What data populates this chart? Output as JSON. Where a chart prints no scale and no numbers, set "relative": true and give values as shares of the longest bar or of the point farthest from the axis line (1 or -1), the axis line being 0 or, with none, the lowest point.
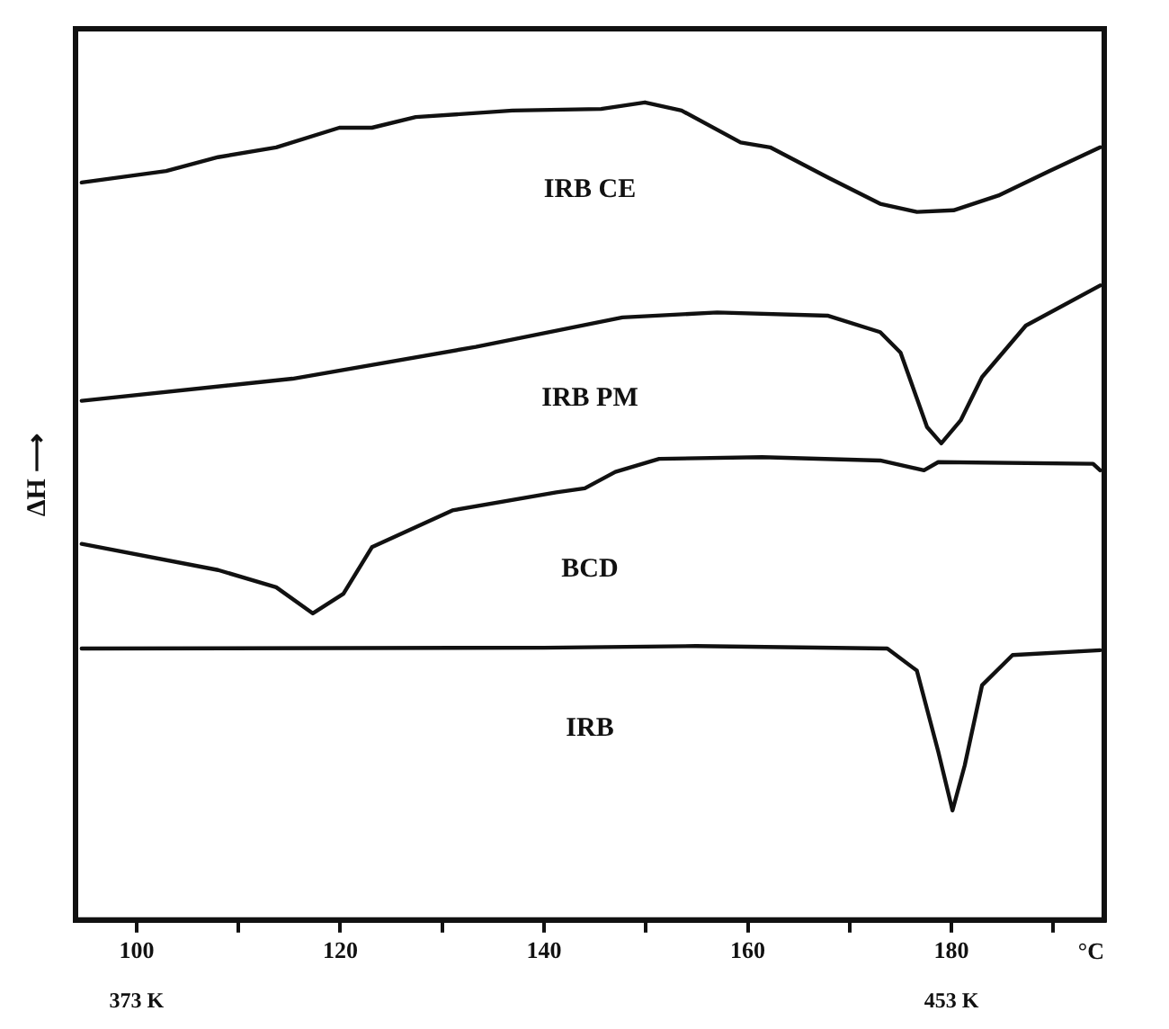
{
  "chart_data": {
    "type": "line",
    "relative": true,
    "xlabel": "°C",
    "ylabel": "ΔH ⟶",
    "legend": false,
    "grid": false,
    "marker": "none",
    "line_style": "solid",
    "xlim": [
      94,
      195
    ],
    "xticks": [
      {
        "value": 100,
        "label": "100"
      },
      {
        "value": 110,
        "label": null
      },
      {
        "value": 120,
        "label": "120"
      },
      {
        "value": 130,
        "label": null
      },
      {
        "value": 140,
        "label": "140"
      },
      {
        "value": 150,
        "label": null
      },
      {
        "value": 160,
        "label": "160"
      },
      {
        "value": 170,
        "label": null
      },
      {
        "value": 180,
        "label": "180"
      },
      {
        "value": 190,
        "label": null
      }
    ],
    "x2lim": [
      367,
      468
    ],
    "x2ticks": [
      {
        "value": 373,
        "label": "373 K"
      },
      {
        "value": 453,
        "label": "453 K"
      }
    ],
    "series": [
      {
        "name": "IRB CE",
        "color": "#111111",
        "x": [
          94.6,
          102.9,
          108.0,
          113.7,
          119.9,
          123.1,
          127.4,
          136.9,
          145.6,
          149.9,
          153.5,
          159.3,
          162.2,
          167.9,
          173.0,
          176.6,
          180.2,
          184.6,
          189.6,
          194.6
        ],
        "values": [
          0.902,
          0.916,
          0.933,
          0.945,
          0.969,
          0.969,
          0.982,
          0.99,
          0.992,
          1.0,
          0.99,
          0.951,
          0.945,
          0.908,
          0.876,
          0.866,
          0.868,
          0.886,
          0.916,
          0.945
        ]
      },
      {
        "name": "IRB PM",
        "color": "#111111",
        "x": [
          94.6,
          115.3,
          133.3,
          147.7,
          157.0,
          167.9,
          173.0,
          175.0,
          177.6,
          179.0,
          180.9,
          183.0,
          187.3,
          194.6
        ],
        "values": [
          0.635,
          0.662,
          0.701,
          0.737,
          0.743,
          0.739,
          0.719,
          0.694,
          0.603,
          0.583,
          0.611,
          0.664,
          0.727,
          0.776
        ]
      },
      {
        "name": "BCD",
        "color": "#111111",
        "x": [
          94.6,
          108.0,
          113.7,
          117.3,
          120.3,
          123.1,
          131.0,
          141.2,
          144.0,
          147.0,
          151.3,
          161.4,
          173.0,
          177.3,
          178.7,
          193.9,
          194.6
        ],
        "values": [
          0.46,
          0.428,
          0.407,
          0.375,
          0.399,
          0.456,
          0.501,
          0.523,
          0.528,
          0.548,
          0.564,
          0.566,
          0.562,
          0.55,
          0.56,
          0.558,
          0.55
        ]
      },
      {
        "name": "IRB",
        "color": "#111111",
        "x": [
          94.6,
          140.0,
          154.9,
          173.7,
          176.6,
          178.7,
          180.1,
          181.3,
          183.0,
          186.0,
          194.6
        ],
        "values": [
          0.332,
          0.333,
          0.335,
          0.332,
          0.305,
          0.206,
          0.134,
          0.189,
          0.287,
          0.324,
          0.33
        ]
      }
    ]
  }
}
